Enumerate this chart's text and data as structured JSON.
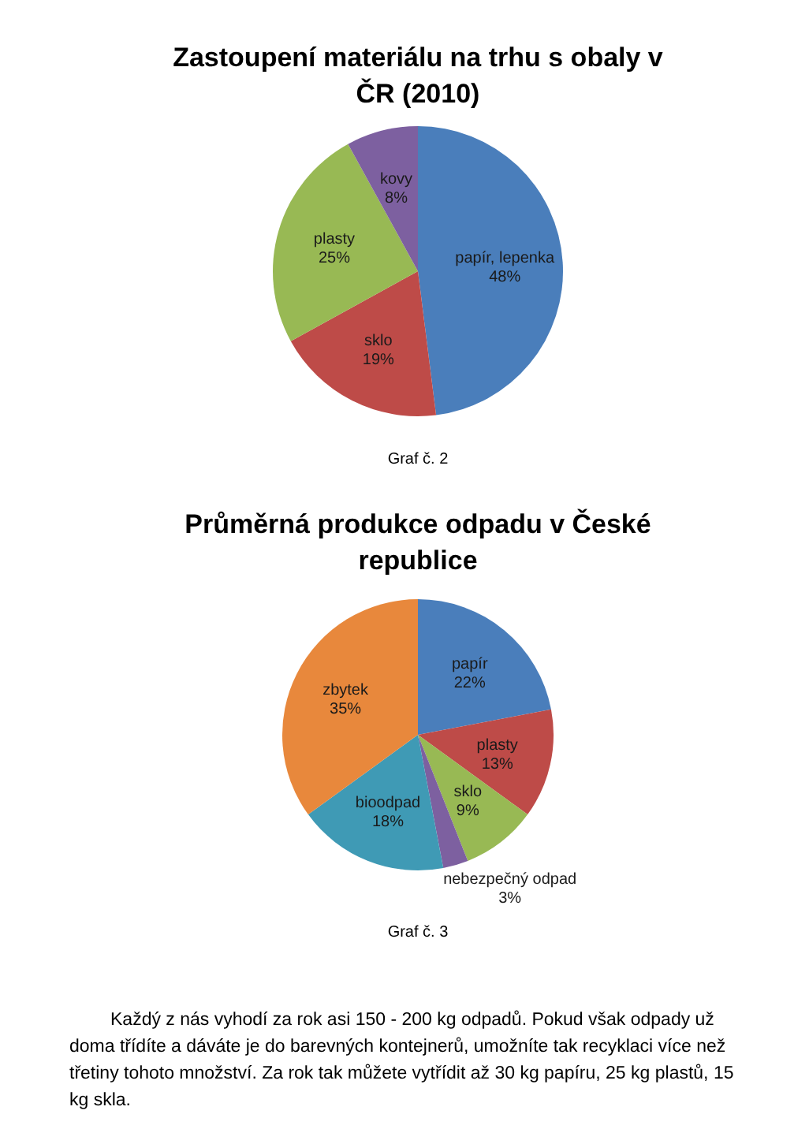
{
  "chart_data": [
    {
      "type": "pie",
      "title": "Zastoupení materiálu na trhu s obaly v ČR (2010)",
      "categories": [
        "papír, lepenka",
        "sklo",
        "plasty",
        "kovy"
      ],
      "values": [
        48,
        19,
        25,
        8
      ],
      "colors": [
        "#4a7ebb",
        "#be4b48",
        "#98b954",
        "#7d60a0"
      ],
      "value_labels": [
        "48%",
        "19%",
        "25%",
        "8%"
      ],
      "annotations": [
        "Graf č. 2"
      ]
    },
    {
      "type": "pie",
      "title": "Průměrná produkce odpadu v České republice",
      "categories": [
        "papír",
        "plasty",
        "sklo",
        "nebezpečný odpad",
        "bioodpad",
        "zbytek"
      ],
      "values": [
        22,
        13,
        9,
        3,
        18,
        35
      ],
      "colors": [
        "#4a7ebb",
        "#be4b48",
        "#98b954",
        "#7d60a0",
        "#3f9ab5",
        "#e8883c"
      ],
      "value_labels": [
        "22%",
        "13%",
        "9%",
        "3%",
        "18%",
        "35%"
      ],
      "annotations": [
        "Graf č. 3",
        "Každý z nás vyhodí za rok asi 150 - 200 kg odpadů. Pokud však odpady už doma třídíte a dáváte je do barevných kontejnerů, umožníte tak recyklaci více než třetiny tohoto množství. Za rok tak můžete vytřídit až 30 kg papíru, 25 kg plastů, 15 kg skla."
      ]
    }
  ]
}
